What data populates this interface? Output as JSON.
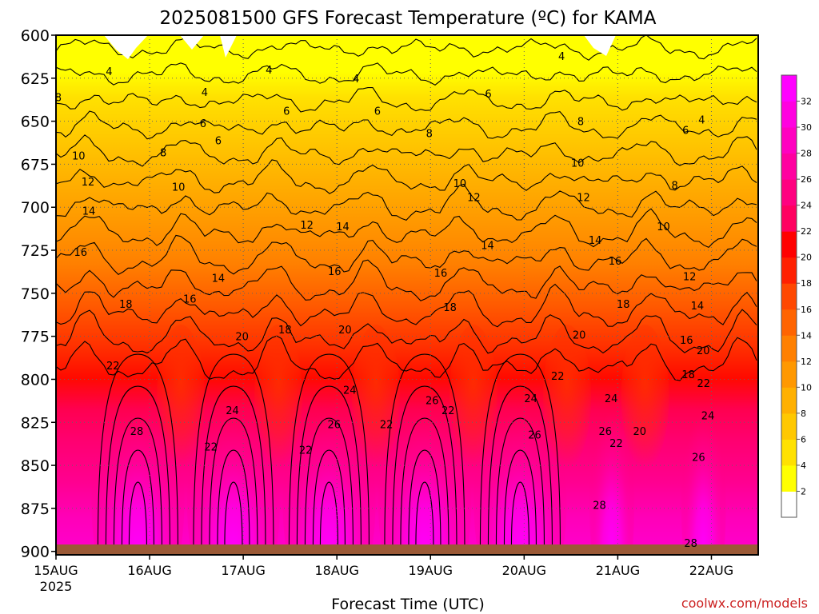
{
  "chart_data": {
    "type": "heatmap",
    "title": "2025081500 GFS Forecast Temperature (ºC) for KAMA",
    "xlabel": "Forecast Time (UTC)",
    "ylabel": "",
    "credit": "coolwx.com/models",
    "x_ticks": [
      {
        "label": "15AUG",
        "sublabel": "2025",
        "hour": 0
      },
      {
        "label": "16AUG",
        "sublabel": "",
        "hour": 24
      },
      {
        "label": "17AUG",
        "sublabel": "",
        "hour": 48
      },
      {
        "label": "18AUG",
        "sublabel": "",
        "hour": 72
      },
      {
        "label": "19AUG",
        "sublabel": "",
        "hour": 96
      },
      {
        "label": "20AUG",
        "sublabel": "",
        "hour": 120
      },
      {
        "label": "21AUG",
        "sublabel": "",
        "hour": 144
      },
      {
        "label": "22AUG",
        "sublabel": "",
        "hour": 168
      }
    ],
    "x_range_hours": [
      0,
      180
    ],
    "y_ticks": [
      "600",
      "625",
      "650",
      "675",
      "700",
      "725",
      "750",
      "775",
      "800",
      "825",
      "850",
      "875",
      "900"
    ],
    "y_range_hPa": [
      600,
      902
    ],
    "y_reversed": true,
    "surface_pressure_hPa": 896,
    "colorbar": {
      "labels": [
        "2",
        "4",
        "6",
        "8",
        "10",
        "12",
        "14",
        "16",
        "18",
        "20",
        "22",
        "24",
        "26",
        "28",
        "30",
        "32"
      ],
      "colors": [
        "#ffffff",
        "#ffff00",
        "#ffe100",
        "#ffc800",
        "#ffb000",
        "#ff9800",
        "#ff8000",
        "#ff6400",
        "#ff4800",
        "#ff2000",
        "#ff0000",
        "#ff0060",
        "#ff0080",
        "#ff00a0",
        "#ff00c0",
        "#ff00e0",
        "#ff00ff"
      ]
    },
    "contour_labels": [
      {
        "text": "4",
        "h": 13.6,
        "p": 621
      },
      {
        "text": "8",
        "h": 0.6,
        "p": 636
      },
      {
        "text": "4",
        "h": 38.1,
        "p": 633
      },
      {
        "text": "4",
        "h": 54.6,
        "p": 620
      },
      {
        "text": "6",
        "h": 37.7,
        "p": 651
      },
      {
        "text": "6",
        "h": 41.6,
        "p": 661
      },
      {
        "text": "6",
        "h": 59.1,
        "p": 644
      },
      {
        "text": "4",
        "h": 76.9,
        "p": 625
      },
      {
        "text": "6",
        "h": 82.4,
        "p": 644
      },
      {
        "text": "8",
        "h": 27.5,
        "p": 668
      },
      {
        "text": "10",
        "h": 5.8,
        "p": 670
      },
      {
        "text": "8",
        "h": 95.7,
        "p": 657
      },
      {
        "text": "6",
        "h": 110.8,
        "p": 634
      },
      {
        "text": "4",
        "h": 129.6,
        "p": 612
      },
      {
        "text": "6",
        "h": 161.4,
        "p": 655
      },
      {
        "text": "4",
        "h": 165.5,
        "p": 649
      },
      {
        "text": "12",
        "h": 8.2,
        "p": 685
      },
      {
        "text": "10",
        "h": 31.4,
        "p": 688
      },
      {
        "text": "10",
        "h": 103.5,
        "p": 686
      },
      {
        "text": "8",
        "h": 134.5,
        "p": 650
      },
      {
        "text": "10",
        "h": 133.7,
        "p": 674
      },
      {
        "text": "8",
        "h": 158.6,
        "p": 687
      },
      {
        "text": "14",
        "h": 8.4,
        "p": 702
      },
      {
        "text": "12",
        "h": 64.3,
        "p": 710
      },
      {
        "text": "14",
        "h": 73.5,
        "p": 711
      },
      {
        "text": "12",
        "h": 107.1,
        "p": 694
      },
      {
        "text": "12",
        "h": 135.2,
        "p": 694
      },
      {
        "text": "16",
        "h": 6.3,
        "p": 726
      },
      {
        "text": "14",
        "h": 110.6,
        "p": 722
      },
      {
        "text": "14",
        "h": 138.2,
        "p": 719
      },
      {
        "text": "10",
        "h": 155.7,
        "p": 711
      },
      {
        "text": "16",
        "h": 143.3,
        "p": 731
      },
      {
        "text": "14",
        "h": 41.6,
        "p": 741
      },
      {
        "text": "16",
        "h": 71.4,
        "p": 737
      },
      {
        "text": "16",
        "h": 98.6,
        "p": 738
      },
      {
        "text": "12",
        "h": 162.4,
        "p": 740
      },
      {
        "text": "18",
        "h": 17.9,
        "p": 756
      },
      {
        "text": "16",
        "h": 34.3,
        "p": 753
      },
      {
        "text": "18",
        "h": 101.0,
        "p": 758
      },
      {
        "text": "18",
        "h": 145.4,
        "p": 756
      },
      {
        "text": "14",
        "h": 164.4,
        "p": 757
      },
      {
        "text": "18",
        "h": 58.7,
        "p": 771
      },
      {
        "text": "20",
        "h": 47.7,
        "p": 775
      },
      {
        "text": "20",
        "h": 74.1,
        "p": 771
      },
      {
        "text": "20",
        "h": 134.1,
        "p": 774
      },
      {
        "text": "16",
        "h": 161.6,
        "p": 777
      },
      {
        "text": "20",
        "h": 165.9,
        "p": 783
      },
      {
        "text": "22",
        "h": 14.6,
        "p": 792
      },
      {
        "text": "22",
        "h": 128.6,
        "p": 798
      },
      {
        "text": "18",
        "h": 162.1,
        "p": 797
      },
      {
        "text": "22",
        "h": 166.0,
        "p": 802
      },
      {
        "text": "24",
        "h": 75.3,
        "p": 806
      },
      {
        "text": "26",
        "h": 96.4,
        "p": 812
      },
      {
        "text": "24",
        "h": 121.7,
        "p": 811
      },
      {
        "text": "24",
        "h": 142.3,
        "p": 811
      },
      {
        "text": "24",
        "h": 45.2,
        "p": 818
      },
      {
        "text": "22",
        "h": 100.5,
        "p": 818
      },
      {
        "text": "24",
        "h": 167.1,
        "p": 821
      },
      {
        "text": "26",
        "h": 71.3,
        "p": 826
      },
      {
        "text": "22",
        "h": 84.7,
        "p": 826
      },
      {
        "text": "28",
        "h": 20.7,
        "p": 830
      },
      {
        "text": "26",
        "h": 122.7,
        "p": 832
      },
      {
        "text": "26",
        "h": 140.8,
        "p": 830
      },
      {
        "text": "20",
        "h": 149.6,
        "p": 830
      },
      {
        "text": "22",
        "h": 39.7,
        "p": 839
      },
      {
        "text": "22",
        "h": 64.0,
        "p": 841
      },
      {
        "text": "22",
        "h": 143.6,
        "p": 837
      },
      {
        "text": "26",
        "h": 164.7,
        "p": 845
      },
      {
        "text": "28",
        "h": 139.3,
        "p": 873
      },
      {
        "text": "28",
        "h": 162.7,
        "p": 895
      }
    ]
  }
}
